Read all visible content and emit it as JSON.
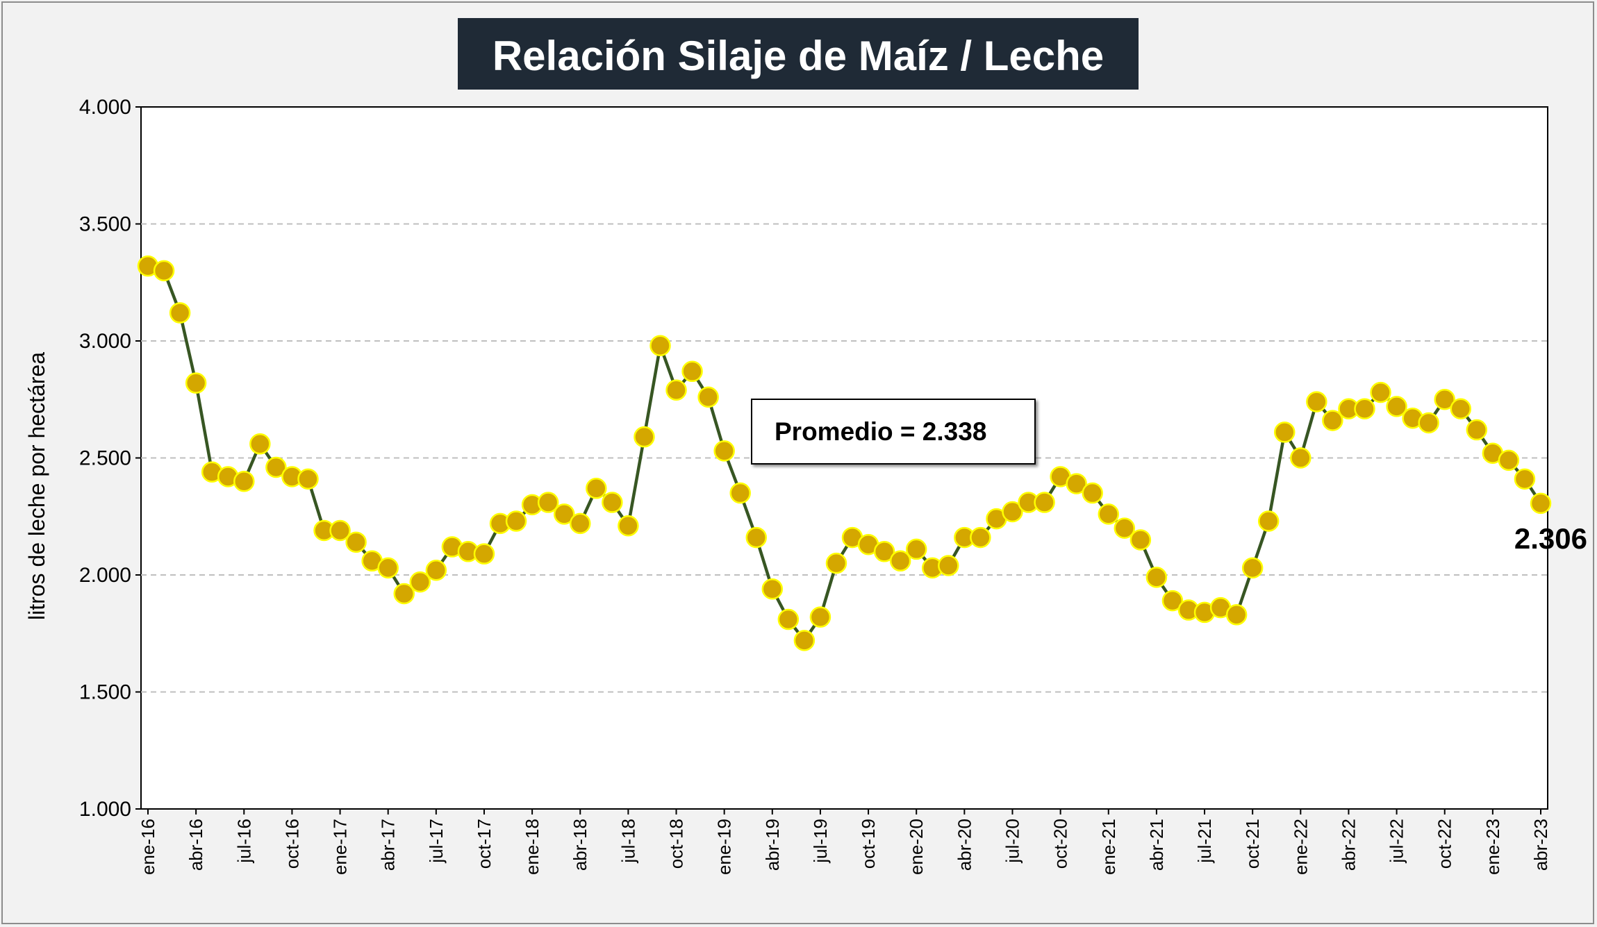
{
  "chart_data": {
    "type": "line",
    "title": "Relación Silaje de Maíz / Leche",
    "ylabel": "litros de leche por hectárea",
    "xlabel": "",
    "ylim": [
      1000,
      4000
    ],
    "yticks": [
      "1.000",
      "1.500",
      "2.000",
      "2.500",
      "3.000",
      "3.500",
      "4.000"
    ],
    "ytick_values": [
      1000,
      1500,
      2000,
      2500,
      3000,
      3500,
      4000
    ],
    "x_tick_labels": [
      "ene-16",
      "abr-16",
      "jul-16",
      "oct-16",
      "ene-17",
      "abr-17",
      "jul-17",
      "oct-17",
      "ene-18",
      "abr-18",
      "jul-18",
      "oct-18",
      "ene-19",
      "abr-19",
      "jul-19",
      "oct-19",
      "ene-20",
      "abr-20",
      "jul-20",
      "oct-20",
      "ene-21",
      "abr-21",
      "jul-21",
      "oct-21",
      "ene-22",
      "abr-22",
      "jul-22",
      "oct-22",
      "ene-23",
      "abr-23"
    ],
    "grid": "horizontal dashed",
    "average_annotation": "Promedio = 2.338",
    "last_value_label": "2.306",
    "series": [
      {
        "color": "#375623",
        "marker_color": "#d4a700",
        "marker_edge": "#ffff00",
        "values": [
          3320,
          3300,
          3120,
          2820,
          2440,
          2420,
          2400,
          2560,
          2460,
          2420,
          2410,
          2190,
          2190,
          2140,
          2060,
          2030,
          1920,
          1970,
          2020,
          2120,
          2100,
          2090,
          2220,
          2230,
          2300,
          2310,
          2260,
          2220,
          2370,
          2310,
          2210,
          2590,
          2980,
          2790,
          2870,
          2760,
          2530,
          2350,
          2160,
          1940,
          1810,
          1720,
          1820,
          2050,
          2160,
          2130,
          2100,
          2060,
          2110,
          2030,
          2040,
          2160,
          2160,
          2240,
          2270,
          2310,
          2310,
          2420,
          2390,
          2350,
          2260,
          2200,
          2150,
          1990,
          1890,
          1850,
          1840,
          1860,
          1830,
          2030,
          2230,
          2610,
          2500,
          2740,
          2660,
          2710,
          2710,
          2780,
          2720,
          2670,
          2650,
          2750,
          2710,
          2620,
          2520,
          2490,
          2410,
          2306
        ]
      }
    ]
  },
  "colors": {
    "title_bg": "#1f2a36",
    "plot_bg": "#ffffff",
    "line": "#375623",
    "marker": "#d4a700",
    "marker_edge": "#ffff00",
    "grid": "#bfbfbf"
  }
}
